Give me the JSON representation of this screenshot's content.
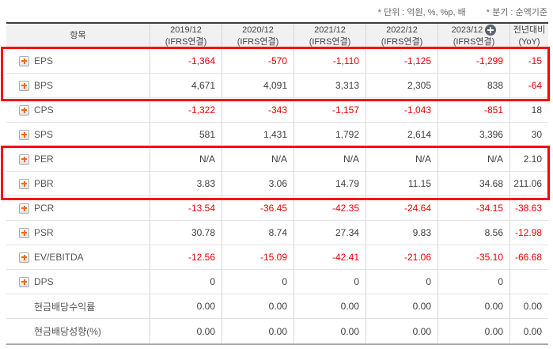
{
  "notes": {
    "unit": "* 단위 : 억원, %, %p, 배",
    "basis": "* 분기 : 순액기준"
  },
  "colors": {
    "negative_value": "#e60000",
    "expand_icon_orange": "#ff6600",
    "annotation_red": "#fe0000",
    "header_bg": "#f1f1f1"
  },
  "table": {
    "columns": {
      "item_label": "항목",
      "years": [
        {
          "period": "2019/12",
          "standard": "(IFRS연결)",
          "has_plus_icon": false
        },
        {
          "period": "2020/12",
          "standard": "(IFRS연결)",
          "has_plus_icon": false
        },
        {
          "period": "2021/12",
          "standard": "(IFRS연결)",
          "has_plus_icon": false
        },
        {
          "period": "2022/12",
          "standard": "(IFRS연결)",
          "has_plus_icon": false
        },
        {
          "period": "2023/12",
          "standard": "(IFRS연결)",
          "has_plus_icon": true
        }
      ],
      "yoy": {
        "line1": "전년대비",
        "line2": "(YoY)"
      }
    },
    "rows": [
      {
        "label": "EPS",
        "expandable": true,
        "values": [
          "-1,364",
          "-570",
          "-1,110",
          "-1,125",
          "-1,299",
          "-15"
        ]
      },
      {
        "label": "BPS",
        "expandable": true,
        "values": [
          "4,671",
          "4,091",
          "3,313",
          "2,305",
          "838",
          "-64"
        ]
      },
      {
        "label": "CPS",
        "expandable": true,
        "values": [
          "-1,322",
          "-343",
          "-1,157",
          "-1,043",
          "-851",
          "18"
        ]
      },
      {
        "label": "SPS",
        "expandable": true,
        "values": [
          "581",
          "1,431",
          "1,792",
          "2,614",
          "3,396",
          "30"
        ]
      },
      {
        "label": "PER",
        "expandable": true,
        "values": [
          "N/A",
          "N/A",
          "N/A",
          "N/A",
          "N/A",
          "2.10"
        ]
      },
      {
        "label": "PBR",
        "expandable": true,
        "values": [
          "3.83",
          "3.06",
          "14.79",
          "11.15",
          "34.68",
          "211.06"
        ]
      },
      {
        "label": "PCR",
        "expandable": true,
        "values": [
          "-13.54",
          "-36.45",
          "-42.35",
          "-24.64",
          "-34.15",
          "-38.63"
        ]
      },
      {
        "label": "PSR",
        "expandable": true,
        "values": [
          "30.78",
          "8.74",
          "27.34",
          "9.83",
          "8.56",
          "-12.98"
        ]
      },
      {
        "label": "EV/EBITDA",
        "expandable": true,
        "values": [
          "-12.56",
          "-15.09",
          "-42.41",
          "-21.06",
          "-35.10",
          "-66.68"
        ]
      },
      {
        "label": "DPS",
        "expandable": true,
        "values": [
          "0",
          "0",
          "0",
          "0",
          "0",
          ""
        ]
      },
      {
        "label": "현금배당수익률",
        "expandable": false,
        "values": [
          "0.00",
          "0.00",
          "0.00",
          "0.00",
          "0.00",
          "0.00"
        ]
      },
      {
        "label": "현금배당성향(%)",
        "expandable": false,
        "values": [
          "0.00",
          "0.00",
          "0.00",
          "0.00",
          "0.00",
          "0.00"
        ]
      }
    ]
  },
  "annotations": [
    {
      "name": "highlight-eps-bps-rows"
    },
    {
      "name": "highlight-per-pbr-rows"
    }
  ]
}
